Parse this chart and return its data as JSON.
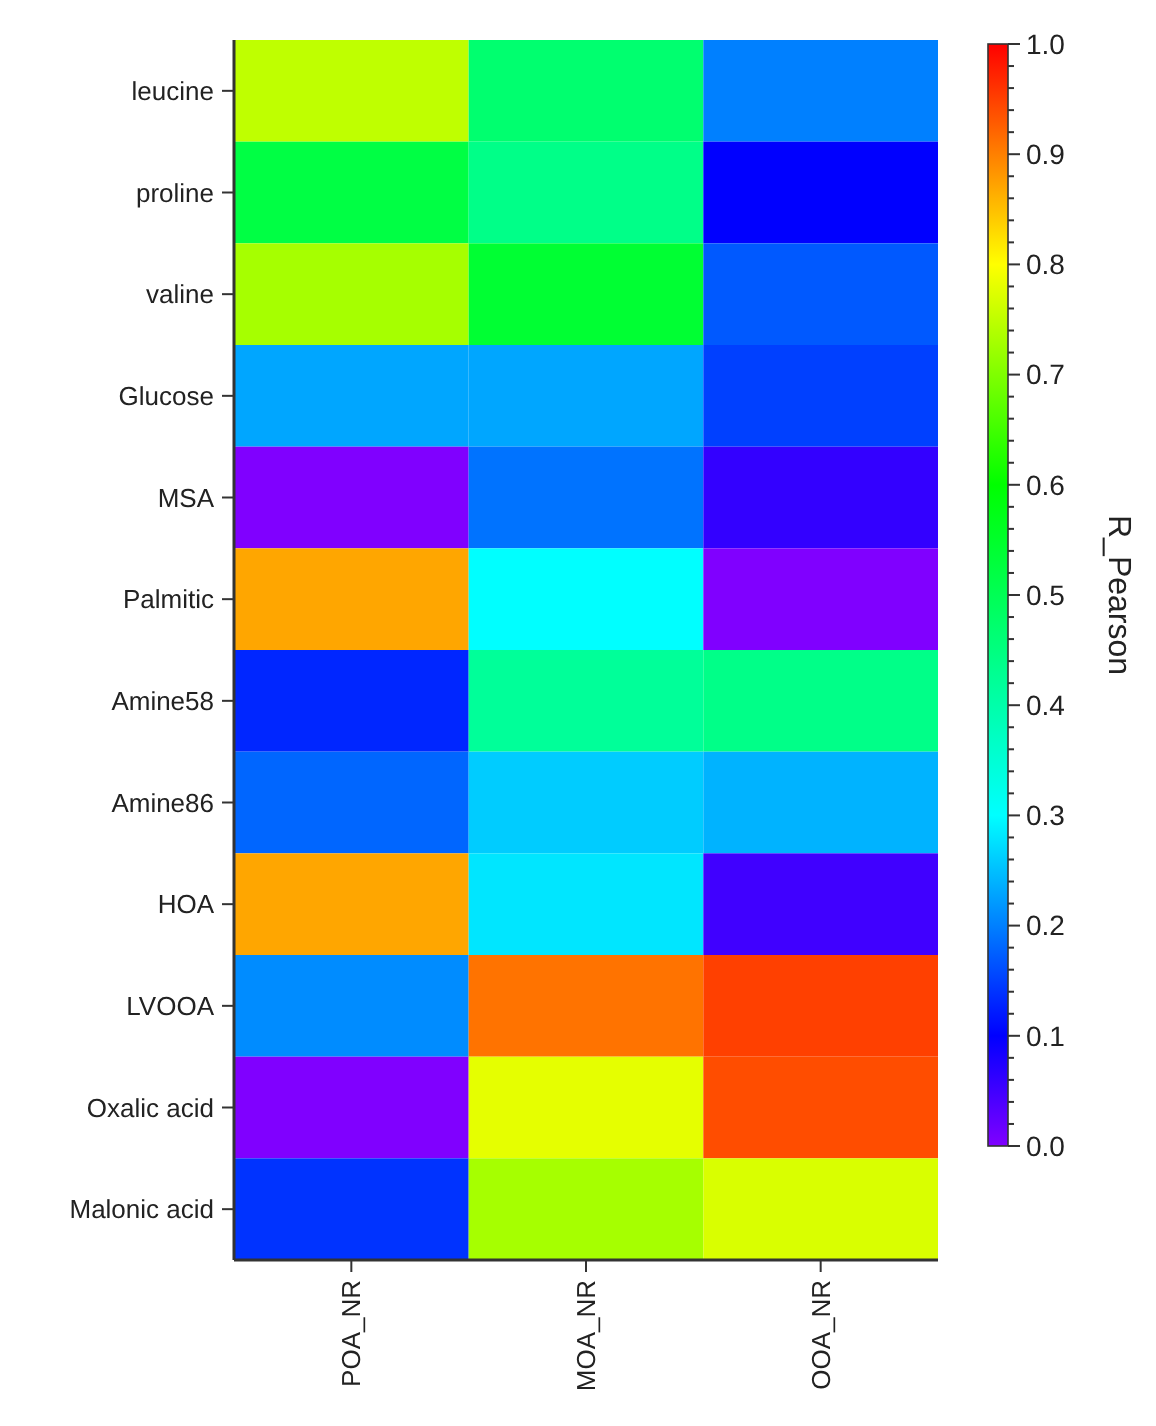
{
  "chart_data": {
    "type": "heatmap",
    "categories": [
      "POA_NR",
      "MOA_NR",
      "OOA_NR"
    ],
    "y_categories": [
      "leucine",
      "proline",
      "valine",
      "Glucose",
      "MSA",
      "Palmitic",
      "Amine58",
      "Amine86",
      "HOA",
      "LVOOA",
      "Oxalic acid",
      "Malonic acid"
    ],
    "cells": [
      [
        0.75,
        0.47,
        0.2
      ],
      [
        0.52,
        0.44,
        0.1
      ],
      [
        0.73,
        0.54,
        0.17
      ],
      [
        0.23,
        0.23,
        0.15
      ],
      [
        0.0,
        0.19,
        0.06
      ],
      [
        0.87,
        0.3,
        0.0
      ],
      [
        0.13,
        0.42,
        0.44
      ],
      [
        0.18,
        0.26,
        0.24
      ],
      [
        0.87,
        0.28,
        0.05
      ],
      [
        0.21,
        0.91,
        0.95
      ],
      [
        0.0,
        0.78,
        0.94
      ],
      [
        0.14,
        0.73,
        0.77
      ]
    ],
    "clabel": "R_Pearson",
    "clim": [
      0,
      1
    ],
    "cticks": [
      {
        "value": 0,
        "label": "0.0"
      },
      {
        "value": 0.02,
        "label": null
      },
      {
        "value": 0.04,
        "label": null
      },
      {
        "value": 0.06,
        "label": null
      },
      {
        "value": 0.08,
        "label": null
      },
      {
        "value": 0.1,
        "label": "0.1"
      },
      {
        "value": 0.12,
        "label": null
      },
      {
        "value": 0.14,
        "label": null
      },
      {
        "value": 0.16,
        "label": null
      },
      {
        "value": 0.18,
        "label": null
      },
      {
        "value": 0.2,
        "label": "0.2"
      },
      {
        "value": 0.22,
        "label": null
      },
      {
        "value": 0.24,
        "label": null
      },
      {
        "value": 0.26,
        "label": null
      },
      {
        "value": 0.28,
        "label": null
      },
      {
        "value": 0.3,
        "label": "0.3"
      },
      {
        "value": 0.32,
        "label": null
      },
      {
        "value": 0.34,
        "label": null
      },
      {
        "value": 0.36,
        "label": null
      },
      {
        "value": 0.38,
        "label": null
      },
      {
        "value": 0.4,
        "label": "0.4"
      },
      {
        "value": 0.42,
        "label": null
      },
      {
        "value": 0.44,
        "label": null
      },
      {
        "value": 0.46,
        "label": null
      },
      {
        "value": 0.48,
        "label": null
      },
      {
        "value": 0.5,
        "label": "0.5"
      },
      {
        "value": 0.52,
        "label": null
      },
      {
        "value": 0.54,
        "label": null
      },
      {
        "value": 0.56,
        "label": null
      },
      {
        "value": 0.58,
        "label": null
      },
      {
        "value": 0.6,
        "label": "0.6"
      },
      {
        "value": 0.62,
        "label": null
      },
      {
        "value": 0.64,
        "label": null
      },
      {
        "value": 0.66,
        "label": null
      },
      {
        "value": 0.68,
        "label": null
      },
      {
        "value": 0.7,
        "label": "0.7"
      },
      {
        "value": 0.72,
        "label": null
      },
      {
        "value": 0.74,
        "label": null
      },
      {
        "value": 0.76,
        "label": null
      },
      {
        "value": 0.78,
        "label": null
      },
      {
        "value": 0.8,
        "label": "0.8"
      },
      {
        "value": 0.82,
        "label": null
      },
      {
        "value": 0.84,
        "label": null
      },
      {
        "value": 0.86,
        "label": null
      },
      {
        "value": 0.88,
        "label": null
      },
      {
        "value": 0.9,
        "label": "0.9"
      },
      {
        "value": 0.92,
        "label": null
      },
      {
        "value": 0.94,
        "label": null
      },
      {
        "value": 0.96,
        "label": null
      },
      {
        "value": 0.98,
        "label": null
      },
      {
        "value": 1,
        "label": "1.0"
      }
    ]
  }
}
